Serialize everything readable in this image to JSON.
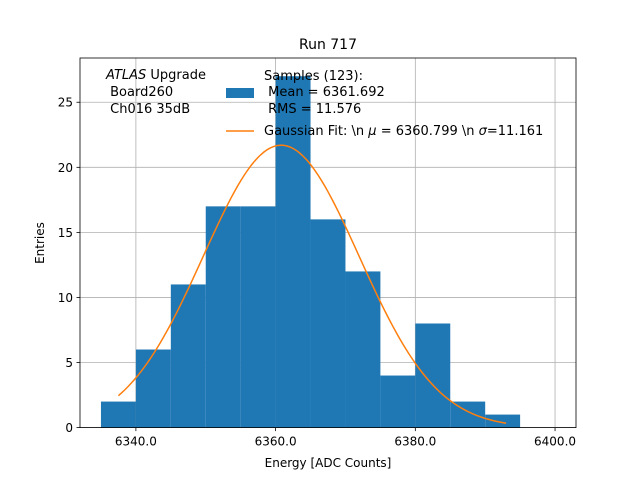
{
  "chart_data": {
    "type": "bar",
    "title": "Run 717",
    "xlabel": "Energy [ADC Counts]",
    "ylabel": "Entries",
    "xlim": [
      6332.0,
      6403.0
    ],
    "ylim": [
      0,
      28.4
    ],
    "xticks": [
      6340.0,
      6360.0,
      6380.0,
      6400.0
    ],
    "xtick_labels": [
      "6340.0",
      "6360.0",
      "6380.0",
      "6400.0"
    ],
    "yticks": [
      0,
      5,
      10,
      15,
      20,
      25
    ],
    "ytick_labels": [
      "0",
      "5",
      "10",
      "15",
      "20",
      "25"
    ],
    "grid": true,
    "legend_position": "top-right",
    "bin_edges": [
      6335,
      6337.5,
      6340,
      6342.5,
      6345,
      6347.5,
      6350,
      6352.5,
      6355,
      6357.5,
      6360,
      6362.5,
      6365,
      6367.5,
      6370,
      6372.5,
      6375,
      6377.5,
      6380,
      6382.5,
      6385,
      6387.5,
      6390,
      6392.5,
      6395
    ],
    "bin_counts": [
      2,
      0,
      6,
      0,
      11,
      0,
      17,
      0,
      17,
      0,
      27,
      0,
      16,
      0,
      12,
      0,
      4,
      0,
      8,
      0,
      2,
      0,
      1,
      0
    ],
    "histogram_color": "#1f77b4",
    "fit_color": "#ff7f0e",
    "fit": {
      "mu": 6360.799,
      "sigma": 11.161,
      "amplitude": 21.7,
      "x_range": [
        6337.5,
        6393.0
      ]
    },
    "annotation": {
      "italic_part": "ATLAS",
      "line1_rest": " Upgrade",
      "line2": " Board260",
      "line3": " Ch016 35dB"
    },
    "legend": {
      "hist_line1": "Samples (123):",
      "hist_line2": " Mean = 6361.692",
      "hist_line3": " RMS = 11.576",
      "fit_prefix": "Gaussian Fit: \\n ",
      "fit_mu_symbol": "μ",
      "fit_middle": " = 6360.799 \\n ",
      "fit_sigma_symbol": "σ",
      "fit_suffix": "=11.161"
    }
  }
}
